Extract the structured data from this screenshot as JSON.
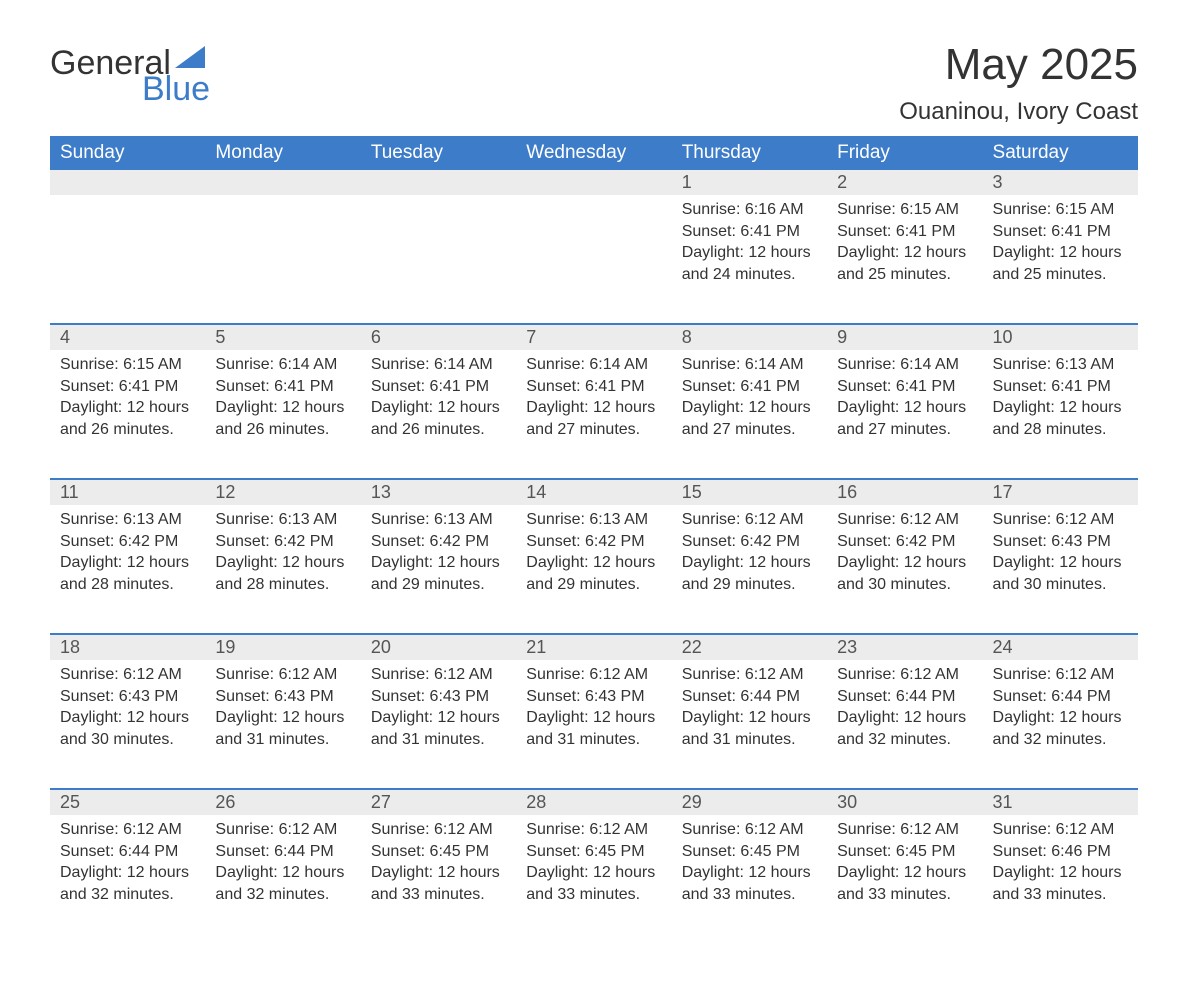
{
  "logo": {
    "word1": "General",
    "word2": "Blue",
    "tri_color": "#3d7cc9"
  },
  "title": "May 2025",
  "location": "Ouaninou, Ivory Coast",
  "colors": {
    "header_bg": "#3d7cc9",
    "header_text": "#ffffff",
    "daynum_bg": "#ececec",
    "divider": "#3d7cc9",
    "body_text": "#333333",
    "background": "#ffffff"
  },
  "fonts": {
    "title_size": 44,
    "location_size": 24,
    "dayheader_size": 19,
    "daynum_size": 18,
    "body_size": 16
  },
  "day_headers": [
    "Sunday",
    "Monday",
    "Tuesday",
    "Wednesday",
    "Thursday",
    "Friday",
    "Saturday"
  ],
  "weeks": [
    [
      null,
      null,
      null,
      null,
      {
        "n": "1",
        "sunrise": "6:16 AM",
        "sunset": "6:41 PM",
        "daylight": "12 hours and 24 minutes."
      },
      {
        "n": "2",
        "sunrise": "6:15 AM",
        "sunset": "6:41 PM",
        "daylight": "12 hours and 25 minutes."
      },
      {
        "n": "3",
        "sunrise": "6:15 AM",
        "sunset": "6:41 PM",
        "daylight": "12 hours and 25 minutes."
      }
    ],
    [
      {
        "n": "4",
        "sunrise": "6:15 AM",
        "sunset": "6:41 PM",
        "daylight": "12 hours and 26 minutes."
      },
      {
        "n": "5",
        "sunrise": "6:14 AM",
        "sunset": "6:41 PM",
        "daylight": "12 hours and 26 minutes."
      },
      {
        "n": "6",
        "sunrise": "6:14 AM",
        "sunset": "6:41 PM",
        "daylight": "12 hours and 26 minutes."
      },
      {
        "n": "7",
        "sunrise": "6:14 AM",
        "sunset": "6:41 PM",
        "daylight": "12 hours and 27 minutes."
      },
      {
        "n": "8",
        "sunrise": "6:14 AM",
        "sunset": "6:41 PM",
        "daylight": "12 hours and 27 minutes."
      },
      {
        "n": "9",
        "sunrise": "6:14 AM",
        "sunset": "6:41 PM",
        "daylight": "12 hours and 27 minutes."
      },
      {
        "n": "10",
        "sunrise": "6:13 AM",
        "sunset": "6:41 PM",
        "daylight": "12 hours and 28 minutes."
      }
    ],
    [
      {
        "n": "11",
        "sunrise": "6:13 AM",
        "sunset": "6:42 PM",
        "daylight": "12 hours and 28 minutes."
      },
      {
        "n": "12",
        "sunrise": "6:13 AM",
        "sunset": "6:42 PM",
        "daylight": "12 hours and 28 minutes."
      },
      {
        "n": "13",
        "sunrise": "6:13 AM",
        "sunset": "6:42 PM",
        "daylight": "12 hours and 29 minutes."
      },
      {
        "n": "14",
        "sunrise": "6:13 AM",
        "sunset": "6:42 PM",
        "daylight": "12 hours and 29 minutes."
      },
      {
        "n": "15",
        "sunrise": "6:12 AM",
        "sunset": "6:42 PM",
        "daylight": "12 hours and 29 minutes."
      },
      {
        "n": "16",
        "sunrise": "6:12 AM",
        "sunset": "6:42 PM",
        "daylight": "12 hours and 30 minutes."
      },
      {
        "n": "17",
        "sunrise": "6:12 AM",
        "sunset": "6:43 PM",
        "daylight": "12 hours and 30 minutes."
      }
    ],
    [
      {
        "n": "18",
        "sunrise": "6:12 AM",
        "sunset": "6:43 PM",
        "daylight": "12 hours and 30 minutes."
      },
      {
        "n": "19",
        "sunrise": "6:12 AM",
        "sunset": "6:43 PM",
        "daylight": "12 hours and 31 minutes."
      },
      {
        "n": "20",
        "sunrise": "6:12 AM",
        "sunset": "6:43 PM",
        "daylight": "12 hours and 31 minutes."
      },
      {
        "n": "21",
        "sunrise": "6:12 AM",
        "sunset": "6:43 PM",
        "daylight": "12 hours and 31 minutes."
      },
      {
        "n": "22",
        "sunrise": "6:12 AM",
        "sunset": "6:44 PM",
        "daylight": "12 hours and 31 minutes."
      },
      {
        "n": "23",
        "sunrise": "6:12 AM",
        "sunset": "6:44 PM",
        "daylight": "12 hours and 32 minutes."
      },
      {
        "n": "24",
        "sunrise": "6:12 AM",
        "sunset": "6:44 PM",
        "daylight": "12 hours and 32 minutes."
      }
    ],
    [
      {
        "n": "25",
        "sunrise": "6:12 AM",
        "sunset": "6:44 PM",
        "daylight": "12 hours and 32 minutes."
      },
      {
        "n": "26",
        "sunrise": "6:12 AM",
        "sunset": "6:44 PM",
        "daylight": "12 hours and 32 minutes."
      },
      {
        "n": "27",
        "sunrise": "6:12 AM",
        "sunset": "6:45 PM",
        "daylight": "12 hours and 33 minutes."
      },
      {
        "n": "28",
        "sunrise": "6:12 AM",
        "sunset": "6:45 PM",
        "daylight": "12 hours and 33 minutes."
      },
      {
        "n": "29",
        "sunrise": "6:12 AM",
        "sunset": "6:45 PM",
        "daylight": "12 hours and 33 minutes."
      },
      {
        "n": "30",
        "sunrise": "6:12 AM",
        "sunset": "6:45 PM",
        "daylight": "12 hours and 33 minutes."
      },
      {
        "n": "31",
        "sunrise": "6:12 AM",
        "sunset": "6:46 PM",
        "daylight": "12 hours and 33 minutes."
      }
    ]
  ],
  "labels": {
    "sunrise": "Sunrise:",
    "sunset": "Sunset:",
    "daylight": "Daylight:"
  }
}
